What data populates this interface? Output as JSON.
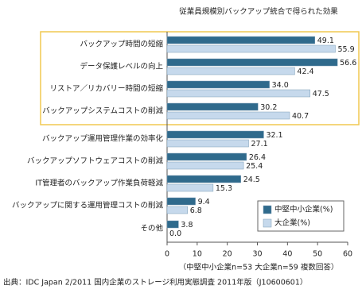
{
  "chart_data": {
    "type": "bar",
    "orientation": "horizontal",
    "title": "従業員規模別バックアップ統合で得られた効果",
    "categories": [
      "バックアップ時間の短縮",
      "データ保護レベルの向上",
      "リストア／リカバリー時間の短縮",
      "バックアップシステムコストの削減",
      "バックアップ運用管理作業の効率化",
      "バックアップソフトウェアコストの削減",
      "IT管理者のバックアップ作業負荷軽減",
      "バックアップに関する運用管理コストの削減",
      "その他"
    ],
    "series": [
      {
        "name": "中堅中小企業(%)",
        "color": "#2f6a8c",
        "values": [
          49.1,
          56.6,
          34.0,
          30.2,
          32.1,
          26.4,
          24.5,
          9.4,
          3.8
        ],
        "value_labels": [
          "49.1",
          "56.6",
          "34.0",
          "30.2",
          "32.1",
          "26.4",
          "24.5",
          "9.4",
          "3.8"
        ]
      },
      {
        "name": "大企業(%)",
        "color": "#c6d9ec",
        "values": [
          55.9,
          42.4,
          47.5,
          40.7,
          27.1,
          25.4,
          15.3,
          6.8,
          0.0
        ],
        "value_labels": [
          "55.9",
          "42.4",
          "47.5",
          "40.7",
          "27.1",
          "25.4",
          "15.3",
          "6.8",
          "0.0"
        ]
      }
    ],
    "xlim": [
      0,
      60
    ],
    "xticks": [
      0,
      10,
      20,
      30,
      40,
      50,
      60
    ],
    "note": "（中堅中小企業n=53 大企業n=59 複数回答）",
    "source": "出典：IDC Japan 2/2011 国内企業のストレージ利用実態調査 2011年版（J10600601）"
  }
}
